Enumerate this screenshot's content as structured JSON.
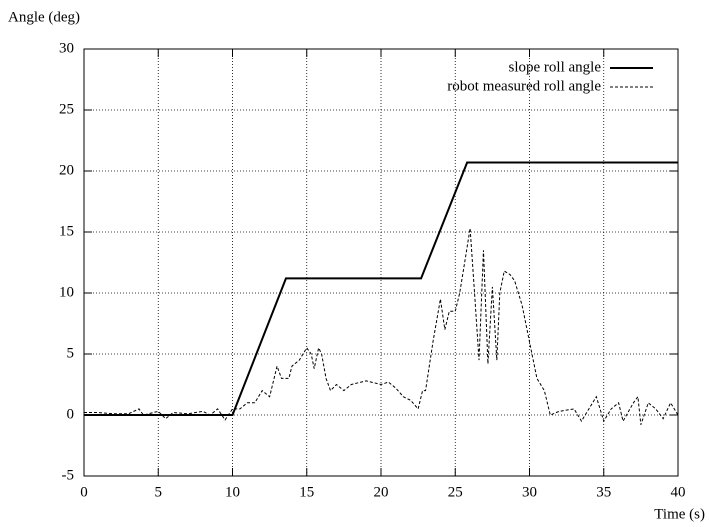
{
  "chart_data": {
    "type": "line",
    "y_label": "Angle (deg)",
    "x_label": "Time (s)",
    "xlim": [
      0,
      40
    ],
    "xticks": [
      0,
      5,
      10,
      15,
      20,
      25,
      30,
      35,
      40
    ],
    "ylim": [
      -5,
      30
    ],
    "yticks": [
      -5,
      0,
      5,
      10,
      15,
      20,
      25,
      30
    ],
    "grid": true,
    "legend": "upper right",
    "series": [
      {
        "name": "slope roll angle",
        "color": "#000000",
        "dash": "solid",
        "x": [
          0,
          10,
          13.6,
          22.7,
          25.8,
          40
        ],
        "values": [
          0,
          0,
          11.2,
          11.2,
          20.7,
          20.7
        ]
      },
      {
        "name": "robot measured roll angle",
        "color": "#000000",
        "dash": "dashed",
        "x": [
          0,
          1,
          2,
          3,
          3.7,
          4,
          5,
          5.5,
          6,
          7,
          8,
          8.5,
          9,
          9.5,
          10,
          10.5,
          11,
          11.5,
          12,
          12.5,
          13,
          13.3,
          13.8,
          14,
          14.5,
          15,
          15.3,
          15.5,
          15.8,
          16,
          16.3,
          16.6,
          17,
          17.5,
          18,
          19,
          20,
          20.5,
          21,
          21.5,
          22,
          22.5,
          22.8,
          23,
          23.5,
          24,
          24.3,
          24.6,
          25,
          25.3,
          25.7,
          26,
          26.3,
          26.6,
          26.9,
          27.2,
          27.5,
          27.8,
          28,
          28.3,
          28.7,
          29,
          29.5,
          30,
          30.5,
          31,
          31.4,
          32,
          33,
          33.5,
          34,
          34.5,
          35,
          35.5,
          36,
          36.3,
          37,
          37.3,
          37.5,
          38,
          38.5,
          39,
          39.5,
          40
        ],
        "values": [
          0.2,
          0.2,
          0.1,
          0.1,
          0.5,
          0,
          0.3,
          -0.3,
          0.2,
          0.1,
          0.3,
          0,
          0.5,
          -0.4,
          0.5,
          0.5,
          1,
          1,
          2,
          1.5,
          4,
          3,
          3,
          4,
          4.5,
          5.5,
          5,
          3.8,
          5.5,
          5,
          3,
          2,
          2.5,
          2,
          2.5,
          2.8,
          2.5,
          2.7,
          2.2,
          1.5,
          1.2,
          0.5,
          2,
          2,
          6,
          9.5,
          7,
          8.5,
          8.5,
          10,
          13,
          15.3,
          10,
          4.5,
          13.5,
          4.2,
          10.5,
          4.5,
          10,
          11.8,
          11.5,
          11,
          9,
          6,
          3,
          2,
          0,
          0.3,
          0.5,
          -0.5,
          0.5,
          1.5,
          -0.5,
          0.5,
          1,
          -0.5,
          1,
          1.5,
          -0.8,
          1,
          0.5,
          -0.3,
          1,
          0
        ]
      }
    ]
  }
}
